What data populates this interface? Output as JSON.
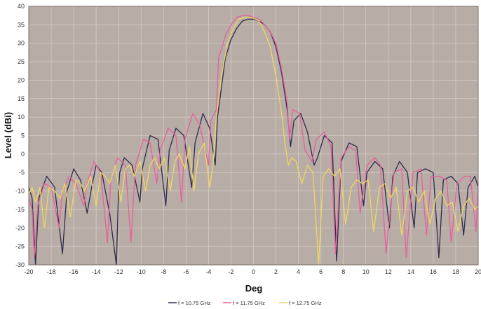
{
  "chart_data": {
    "type": "line",
    "title": "",
    "xlabel": "Deg",
    "ylabel": "Level (dBi)",
    "xlim": [
      -20,
      20
    ],
    "ylim": [
      -30,
      40
    ],
    "x_ticks": [
      "-20",
      "-18",
      "-16",
      "-14",
      "-12",
      "-10",
      "-8",
      "-6",
      "-4",
      "-2",
      "0",
      "2",
      "4",
      "6",
      "8",
      "10",
      "12",
      "14",
      "16",
      "18",
      "20"
    ],
    "y_ticks": [
      "-30",
      "-25",
      "-20",
      "-15",
      "-10",
      "-5",
      "0",
      "5",
      "10",
      "15",
      "20",
      "25",
      "30",
      "35",
      "40"
    ],
    "grid": true,
    "legend_position": "bottom",
    "background_color": "#b8aca6",
    "series": [
      {
        "name": "f = 10.75 GHz",
        "color": "#2e2b4a",
        "x": [
          -20,
          -19.7,
          -19.4,
          -19.1,
          -18.4,
          -17.7,
          -17.0,
          -16.6,
          -16.0,
          -15.4,
          -14.8,
          -14.4,
          -14.0,
          -13.5,
          -12.8,
          -12.2,
          -12.0,
          -11.9,
          -11.5,
          -10.8,
          -10.1,
          -9.9,
          -9.2,
          -8.5,
          -7.8,
          -7.5,
          -6.9,
          -6.2,
          -5.5,
          -5.2,
          -4.5,
          -3.9,
          -3.4,
          -3.2,
          -2.5,
          -2.0,
          -1.5,
          -1.0,
          -0.5,
          0,
          0.5,
          1.0,
          1.5,
          2.0,
          2.5,
          3.0,
          3.3,
          3.6,
          4.2,
          4.8,
          5.4,
          5.7,
          6.3,
          7.0,
          7.4,
          7.8,
          8.5,
          9.2,
          9.8,
          10.1,
          10.8,
          11.5,
          12.1,
          12.4,
          13.0,
          13.7,
          14.3,
          14.6,
          15.3,
          16.0,
          16.5,
          16.9,
          17.6,
          18.2,
          18.7,
          19.1,
          19.7,
          20
        ],
        "y": [
          -9,
          -12,
          -30,
          -12,
          -6,
          -9,
          -27,
          -10,
          -4,
          -7,
          -16,
          -9,
          -3,
          -5,
          -16,
          -30,
          -9,
          -5,
          -1,
          -3,
          -13,
          -4,
          5,
          4,
          -14,
          1,
          7,
          5,
          -9,
          3,
          11,
          7,
          -3,
          10,
          26,
          31,
          34,
          36,
          36.5,
          36.5,
          36,
          35,
          33,
          29,
          22,
          12,
          2,
          9,
          11,
          6,
          -3,
          -1,
          5,
          3,
          -29,
          -2,
          3,
          2,
          -14,
          -5,
          -2,
          -4,
          -20,
          -6,
          -2,
          -5,
          -20,
          -5,
          -4,
          -5,
          -28,
          -7,
          -6,
          -8,
          -22,
          -9,
          -6,
          -9
        ]
      },
      {
        "name": "f = 11.75 GHz",
        "color": "#e8609a",
        "x": [
          -20,
          -19.7,
          -19.5,
          -19.2,
          -18.6,
          -18.0,
          -17.3,
          -17.0,
          -16.4,
          -15.8,
          -15.1,
          -14.8,
          -14.2,
          -13.6,
          -13.0,
          -12.7,
          -12.1,
          -11.4,
          -10.9,
          -10.5,
          -9.8,
          -9.2,
          -8.6,
          -8.3,
          -7.6,
          -6.9,
          -6.4,
          -6.1,
          -5.4,
          -4.8,
          -4.0,
          -3.8,
          -3.3,
          -3.1,
          -2.5,
          -2.0,
          -1.5,
          -1.0,
          -0.5,
          0,
          0.5,
          1.0,
          1.5,
          2.0,
          2.5,
          3.0,
          3.2,
          3.5,
          4.1,
          4.6,
          5.2,
          5.6,
          6.3,
          6.9,
          7.3,
          7.8,
          8.5,
          9.1,
          9.5,
          10.1,
          10.8,
          11.3,
          11.8,
          12.5,
          13.2,
          13.6,
          14.2,
          14.9,
          15.4,
          15.8,
          16.5,
          17.2,
          17.6,
          18.1,
          18.8,
          19.3,
          19.8,
          20
        ],
        "y": [
          -12,
          -15,
          -28,
          -14,
          -8,
          -9,
          -20,
          -10,
          -6,
          -8,
          -14,
          -8,
          -2,
          -5,
          -24,
          -7,
          -1,
          -3,
          -24,
          -3,
          4,
          3,
          -8,
          1,
          7,
          5,
          -13,
          4,
          11,
          8,
          -3,
          9,
          12,
          26,
          32,
          35,
          37,
          37.5,
          37.5,
          37,
          36.5,
          35,
          33,
          30,
          23,
          14,
          4,
          12,
          11,
          1,
          -2,
          4,
          6,
          2,
          -27,
          -1,
          2,
          1,
          -16,
          -3,
          -1,
          -3,
          -27,
          -5,
          -4,
          -28,
          -5,
          -4,
          -22,
          -6,
          -6,
          -7,
          -24,
          -8,
          -6,
          -6,
          -21,
          -8
        ]
      },
      {
        "name": "f = 12.75 GHz",
        "color": "#f0d860",
        "x": [
          -20,
          -19.7,
          -19.4,
          -19.0,
          -18.6,
          -18.2,
          -17.7,
          -17.2,
          -16.8,
          -16.3,
          -15.8,
          -15.4,
          -15.0,
          -14.5,
          -14.0,
          -13.6,
          -13.2,
          -12.8,
          -12.3,
          -11.8,
          -11.4,
          -11.0,
          -10.6,
          -10.1,
          -9.6,
          -9.2,
          -8.8,
          -8.4,
          -7.9,
          -7.4,
          -7.0,
          -6.6,
          -6.1,
          -5.7,
          -5.3,
          -4.9,
          -4.4,
          -3.9,
          -3.6,
          -3.3,
          -2.8,
          -2.3,
          -1.8,
          -1.3,
          -0.8,
          -0.3,
          0,
          0.5,
          1.0,
          1.5,
          2.0,
          2.5,
          2.8,
          3.1,
          3.4,
          3.8,
          4.3,
          4.8,
          5.3,
          5.8,
          6.2,
          6.7,
          7.2,
          7.7,
          8.2,
          8.7,
          9.2,
          9.7,
          10.2,
          10.7,
          11.2,
          11.7,
          12.2,
          12.7,
          13.2,
          13.7,
          14.2,
          14.7,
          15.2,
          15.7,
          16.2,
          16.7,
          17.2,
          17.7,
          18.2,
          18.7,
          19.2,
          19.7,
          20
        ],
        "y": [
          -11,
          -9,
          -13,
          -9,
          -20,
          -9,
          -10,
          -12,
          -8,
          -17,
          -7,
          -8,
          -10,
          -6,
          -14,
          -5,
          -6,
          -8,
          -3,
          -13,
          -4,
          -3,
          -6,
          -2,
          -10,
          -3,
          -1,
          -4,
          -1,
          -10,
          -2,
          0,
          -4,
          2,
          -10,
          0,
          3,
          -9,
          -3,
          10,
          22,
          30,
          34,
          36.5,
          37,
          37,
          36.8,
          36,
          33,
          29,
          21,
          11,
          3,
          -3,
          -1,
          -2,
          -8,
          -3,
          -5,
          -30,
          -6,
          -4,
          -6,
          -4,
          -19,
          -9,
          -7,
          -8,
          -7,
          -21,
          -9,
          -8,
          -12,
          -9,
          -22,
          -10,
          -9,
          -13,
          -10,
          -19,
          -12,
          -10,
          -14,
          -13,
          -21,
          -14,
          -12,
          -15,
          -14
        ]
      }
    ]
  }
}
